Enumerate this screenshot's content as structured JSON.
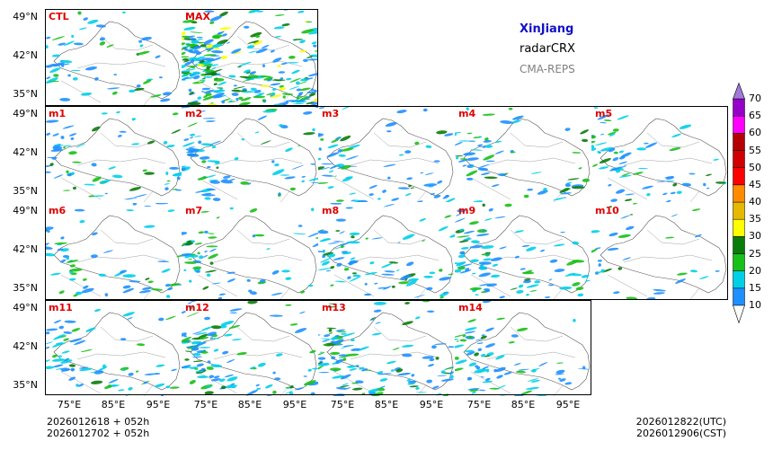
{
  "title": {
    "region": "XinJiang",
    "variable": "radarCRX",
    "model": "CMA-REPS"
  },
  "panels": [
    {
      "label": "CTL",
      "density": 1.0,
      "seed": 11
    },
    {
      "label": "MAX",
      "density": 5.0,
      "seed": 12
    },
    {
      "label": "m1",
      "density": 1.2,
      "seed": 13
    },
    {
      "label": "m2",
      "density": 1.4,
      "seed": 14
    },
    {
      "label": "m3",
      "density": 1.3,
      "seed": 15
    },
    {
      "label": "m4",
      "density": 1.2,
      "seed": 16
    },
    {
      "label": "m5",
      "density": 1.2,
      "seed": 17
    },
    {
      "label": "m6",
      "density": 1.1,
      "seed": 18
    },
    {
      "label": "m7",
      "density": 1.2,
      "seed": 19
    },
    {
      "label": "m8",
      "density": 1.5,
      "seed": 20
    },
    {
      "label": "m9",
      "density": 1.7,
      "seed": 21
    },
    {
      "label": "m10",
      "density": 0.6,
      "seed": 22
    },
    {
      "label": "m11",
      "density": 1.3,
      "seed": 23
    },
    {
      "label": "m12",
      "density": 2.0,
      "seed": 24
    },
    {
      "label": "m13",
      "density": 2.2,
      "seed": 25
    },
    {
      "label": "m14",
      "density": 1.4,
      "seed": 26
    }
  ],
  "axes": {
    "lat_labels": [
      "49°N",
      "42°N",
      "35°N"
    ],
    "lon_labels": [
      "75°E",
      "85°E",
      "95°E"
    ]
  },
  "colorbar": {
    "levels": [
      "10",
      "15",
      "20",
      "25",
      "30",
      "35",
      "40",
      "45",
      "50",
      "55",
      "60",
      "65",
      "70"
    ],
    "colors": [
      "#1e90ff",
      "#00cfe8",
      "#18c018",
      "#0a7c0a",
      "#ffff00",
      "#e6b800",
      "#ff8c00",
      "#ff0000",
      "#d20000",
      "#b40000",
      "#ff00ff",
      "#9400c8",
      "#a27ad8"
    ],
    "under_color": "#ffffff",
    "over_color": "#a27ad8"
  },
  "footer": {
    "init_line1": "2026012618  +  052h",
    "init_line2": "2026012702  +  052h",
    "valid_utc": "2026012822(UTC)",
    "valid_cst": "2026012906(CST)"
  }
}
